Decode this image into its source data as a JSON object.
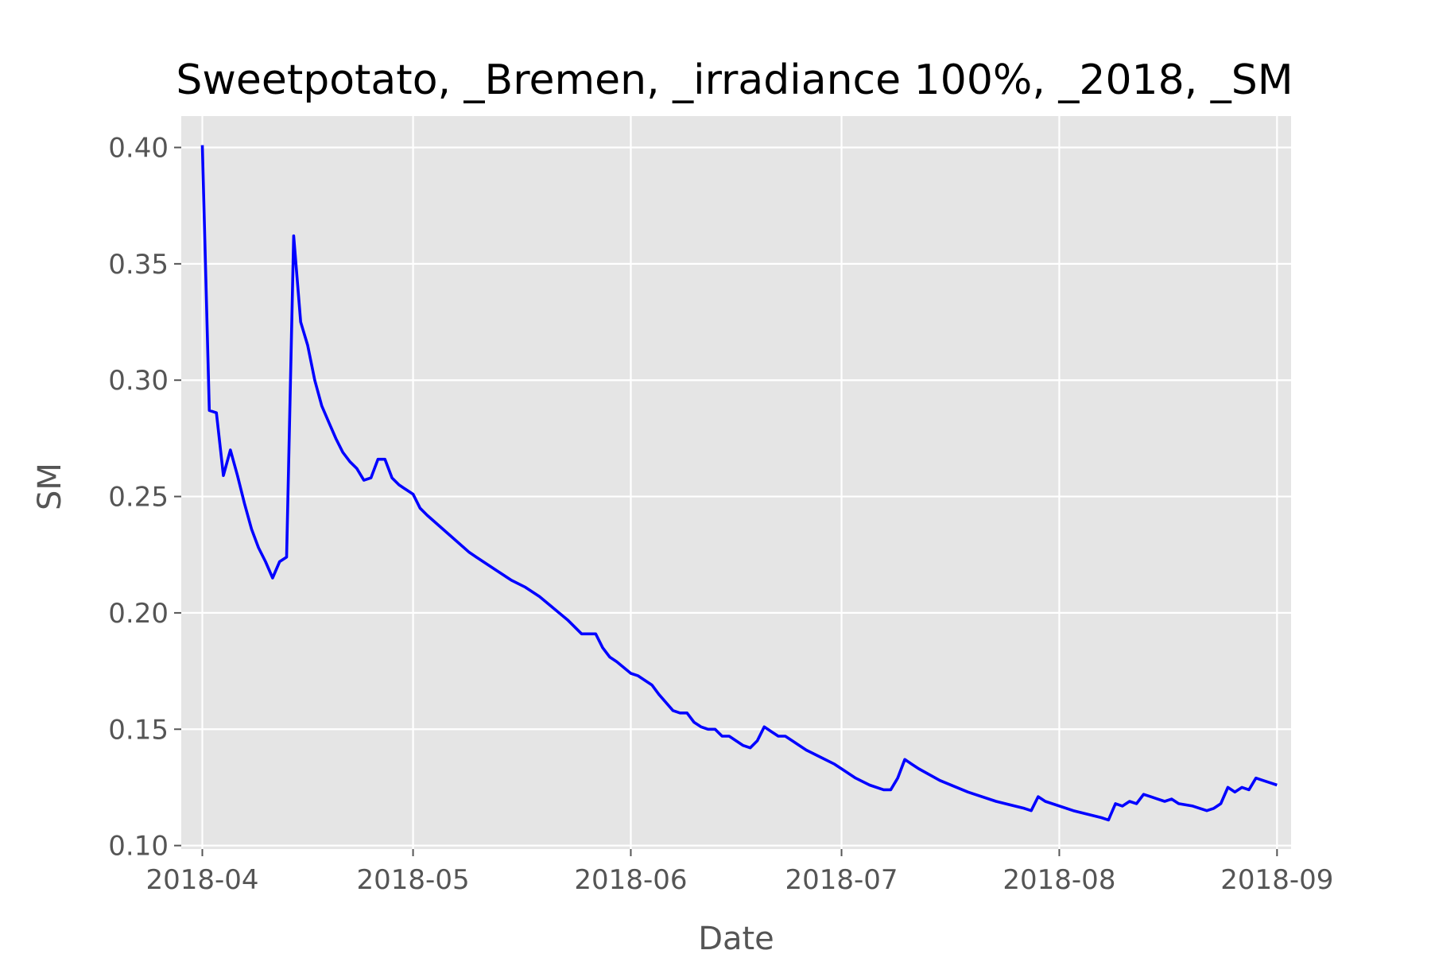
{
  "chart_data": {
    "type": "line",
    "title": "Sweetpotato, _Bremen, _irradiance 100%, _2018, _SM",
    "xlabel": "Date",
    "ylabel": "SM",
    "xlim": [
      "2018-03-29",
      "2018-09-03"
    ],
    "ylim": [
      0.0985,
      0.4135
    ],
    "xticks": [
      {
        "date": "2018-04-01",
        "label": "2018-04"
      },
      {
        "date": "2018-05-01",
        "label": "2018-05"
      },
      {
        "date": "2018-06-01",
        "label": "2018-06"
      },
      {
        "date": "2018-07-01",
        "label": "2018-07"
      },
      {
        "date": "2018-08-01",
        "label": "2018-08"
      },
      {
        "date": "2018-09-01",
        "label": "2018-09"
      }
    ],
    "yticks": [
      {
        "value": 0.1,
        "label": "0.10"
      },
      {
        "value": 0.15,
        "label": "0.15"
      },
      {
        "value": 0.2,
        "label": "0.20"
      },
      {
        "value": 0.25,
        "label": "0.25"
      },
      {
        "value": 0.3,
        "label": "0.30"
      },
      {
        "value": 0.35,
        "label": "0.35"
      },
      {
        "value": 0.4,
        "label": "0.40"
      }
    ],
    "grid": true,
    "background": "#e5e5e5",
    "series": [
      {
        "color": "#0000ff",
        "x": [
          "2018-04-01",
          "2018-04-02",
          "2018-04-03",
          "2018-04-04",
          "2018-04-05",
          "2018-04-06",
          "2018-04-07",
          "2018-04-08",
          "2018-04-09",
          "2018-04-10",
          "2018-04-11",
          "2018-04-12",
          "2018-04-13",
          "2018-04-14",
          "2018-04-15",
          "2018-04-16",
          "2018-04-17",
          "2018-04-18",
          "2018-04-19",
          "2018-04-20",
          "2018-04-21",
          "2018-04-22",
          "2018-04-23",
          "2018-04-24",
          "2018-04-25",
          "2018-04-26",
          "2018-04-27",
          "2018-04-28",
          "2018-04-29",
          "2018-04-30",
          "2018-05-01",
          "2018-05-02",
          "2018-05-03",
          "2018-05-06",
          "2018-05-09",
          "2018-05-10",
          "2018-05-13",
          "2018-05-15",
          "2018-05-17",
          "2018-05-19",
          "2018-05-21",
          "2018-05-23",
          "2018-05-25",
          "2018-05-27",
          "2018-05-28",
          "2018-05-29",
          "2018-05-30",
          "2018-06-01",
          "2018-06-02",
          "2018-06-03",
          "2018-06-04",
          "2018-06-05",
          "2018-06-07",
          "2018-06-08",
          "2018-06-09",
          "2018-06-10",
          "2018-06-11",
          "2018-06-12",
          "2018-06-13",
          "2018-06-14",
          "2018-06-15",
          "2018-06-16",
          "2018-06-17",
          "2018-06-18",
          "2018-06-19",
          "2018-06-20",
          "2018-06-21",
          "2018-06-22",
          "2018-06-23",
          "2018-06-24",
          "2018-06-25",
          "2018-06-26",
          "2018-06-28",
          "2018-06-30",
          "2018-07-01",
          "2018-07-03",
          "2018-07-05",
          "2018-07-07",
          "2018-07-08",
          "2018-07-09",
          "2018-07-10",
          "2018-07-11",
          "2018-07-12",
          "2018-07-15",
          "2018-07-19",
          "2018-07-23",
          "2018-07-27",
          "2018-07-28",
          "2018-07-29",
          "2018-07-30",
          "2018-08-03",
          "2018-08-07",
          "2018-08-08",
          "2018-08-09",
          "2018-08-10",
          "2018-08-11",
          "2018-08-12",
          "2018-08-13",
          "2018-08-14",
          "2018-08-15",
          "2018-08-16",
          "2018-08-17",
          "2018-08-18",
          "2018-08-20",
          "2018-08-21",
          "2018-08-22",
          "2018-08-23",
          "2018-08-24",
          "2018-08-25",
          "2018-08-26",
          "2018-08-27",
          "2018-08-28",
          "2018-08-29",
          "2018-08-30",
          "2018-08-31",
          "2018-09-01"
        ],
        "y": [
          0.401,
          0.287,
          0.286,
          0.259,
          0.27,
          0.259,
          0.247,
          0.236,
          0.228,
          0.222,
          0.215,
          0.222,
          0.224,
          0.362,
          0.325,
          0.315,
          0.3,
          0.289,
          0.282,
          0.275,
          0.269,
          0.265,
          0.262,
          0.257,
          0.258,
          0.266,
          0.266,
          0.258,
          0.255,
          0.253,
          0.251,
          0.245,
          0.242,
          0.234,
          0.226,
          0.224,
          0.218,
          0.214,
          0.211,
          0.207,
          0.202,
          0.197,
          0.191,
          0.191,
          0.185,
          0.181,
          0.179,
          0.174,
          0.173,
          0.171,
          0.169,
          0.165,
          0.158,
          0.157,
          0.157,
          0.153,
          0.151,
          0.15,
          0.15,
          0.147,
          0.147,
          0.145,
          0.143,
          0.142,
          0.145,
          0.151,
          0.149,
          0.147,
          0.147,
          0.145,
          0.143,
          0.141,
          0.138,
          0.135,
          0.133,
          0.129,
          0.126,
          0.124,
          0.124,
          0.129,
          0.137,
          0.135,
          0.133,
          0.128,
          0.123,
          0.119,
          0.116,
          0.115,
          0.121,
          0.119,
          0.115,
          0.112,
          0.111,
          0.118,
          0.117,
          0.119,
          0.118,
          0.122,
          0.121,
          0.12,
          0.119,
          0.12,
          0.118,
          0.117,
          0.116,
          0.115,
          0.116,
          0.118,
          0.125,
          0.123,
          0.125,
          0.124,
          0.129,
          0.128,
          0.127,
          0.126
        ]
      }
    ]
  }
}
